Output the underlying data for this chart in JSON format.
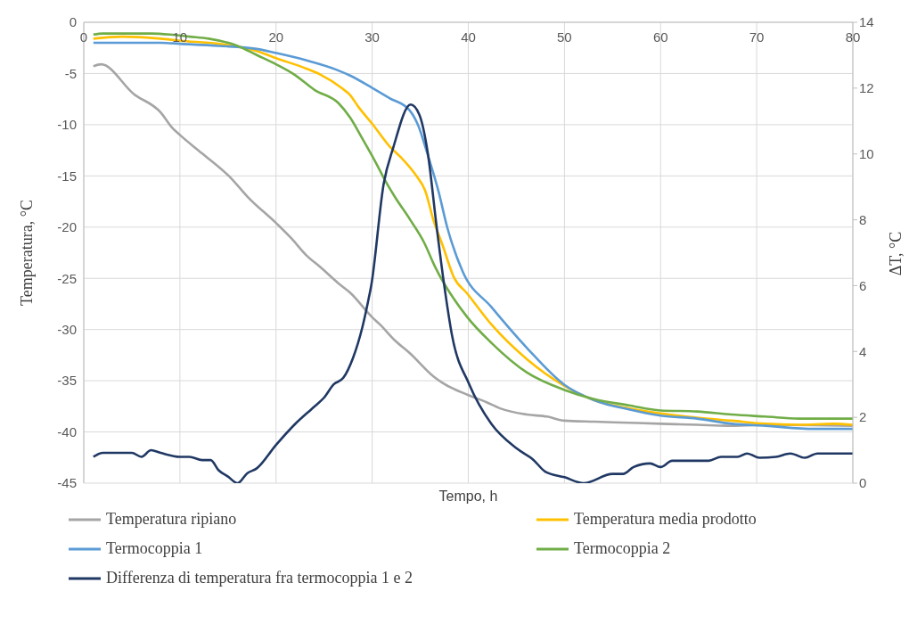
{
  "chart_data": {
    "type": "line",
    "xlabel": "Tempo, h",
    "ylabel": "Temperatura, °C",
    "y2label": "ΔT, °C",
    "xlim": [
      0,
      80
    ],
    "xticks": [
      0,
      10,
      20,
      30,
      40,
      50,
      60,
      70,
      80
    ],
    "ylim": [
      -45,
      0
    ],
    "yticks": [
      -45,
      -40,
      -35,
      -30,
      -25,
      -20,
      -15,
      -10,
      -5,
      0
    ],
    "y2lim": [
      0,
      14
    ],
    "y2ticks": [
      0,
      2,
      4,
      6,
      8,
      10,
      12,
      14
    ],
    "grid": true,
    "legend": "bottom",
    "marker": "none",
    "series": [
      {
        "name": "Temperatura ripiano",
        "color": "#a5a5a5",
        "x": [
          1,
          1.8,
          5.2,
          8,
          9.2,
          10,
          12.3,
          15.4,
          17,
          20,
          21.6,
          23.1,
          24.6,
          26.5,
          27.7,
          30,
          30.8,
          32.4,
          33.9,
          36.4,
          37.3,
          40,
          41.9,
          43.3,
          46.1,
          48.2,
          50,
          53.1,
          56.7,
          60,
          63.8,
          67,
          70.9,
          80
        ],
        "values": [
          -4.3,
          -4.1,
          -7,
          -8.8,
          -10.3,
          -11,
          -12.8,
          -15.3,
          -17,
          -19.6,
          -21.1,
          -22.7,
          -23.9,
          -25.5,
          -26.4,
          -28.8,
          -29.5,
          -31.1,
          -32.3,
          -34.6,
          -35.2,
          -36.4,
          -37.1,
          -37.7,
          -38.3,
          -38.5,
          -38.9,
          -39,
          -39.1,
          -39.2,
          -39.3,
          -39.4,
          -39.3,
          -39.4
        ]
      },
      {
        "name": "Temperatura media prodotto",
        "color": "#ffc000",
        "x": [
          1,
          4,
          8,
          10,
          14,
          18,
          20,
          23.1,
          24.6,
          26.8,
          27.7,
          28.6,
          30,
          31.8,
          33,
          34.6,
          35.5,
          36.4,
          37.3,
          38.5,
          39.9,
          42.4,
          46.1,
          50,
          53.1,
          56.7,
          60,
          63.8,
          67.4,
          70.9,
          74.4,
          78,
          80
        ],
        "values": [
          -1.6,
          -1.4,
          -1.6,
          -1.8,
          -2.1,
          -2.8,
          -3.5,
          -4.5,
          -5.1,
          -6.4,
          -7.1,
          -8.3,
          -9.9,
          -12.1,
          -13.2,
          -15,
          -16.4,
          -19.4,
          -21.7,
          -24.9,
          -26.5,
          -29.5,
          -32.9,
          -35.5,
          -36.9,
          -37.7,
          -38.2,
          -38.6,
          -38.9,
          -39.2,
          -39.3,
          -39.2,
          -39.3
        ]
      },
      {
        "name": "Termocoppia 1",
        "color": "#5b9bd5",
        "x": [
          1,
          8,
          10,
          14,
          18,
          20,
          23.1,
          26.2,
          27.7,
          30,
          31.8,
          33.9,
          34.8,
          35.7,
          36.9,
          37.8,
          39.4,
          42.4,
          46.1,
          50,
          53.1,
          56.7,
          60,
          63.8,
          67.4,
          70.9,
          76,
          80
        ],
        "values": [
          -2,
          -2,
          -2.1,
          -2.3,
          -2.6,
          -3,
          -3.7,
          -4.6,
          -5.2,
          -6.4,
          -7.4,
          -8.6,
          -10.1,
          -12.7,
          -16.5,
          -20,
          -24.3,
          -27.8,
          -31.8,
          -35.4,
          -36.9,
          -37.8,
          -38.4,
          -38.7,
          -39.2,
          -39.4,
          -39.7,
          -39.7
        ]
      },
      {
        "name": "Termocoppia 2",
        "color": "#70ad47",
        "x": [
          1,
          2,
          7,
          9,
          11,
          13,
          16,
          18,
          20,
          21.9,
          24,
          26.5,
          27.7,
          29,
          30.2,
          31.5,
          32.4,
          33.9,
          35.4,
          36.5,
          39.9,
          42.4,
          46.1,
          50,
          53.1,
          56.7,
          60,
          63.8,
          67.4,
          70.9,
          74.4,
          80
        ],
        "values": [
          -1.2,
          -1.1,
          -1.1,
          -1.2,
          -1.4,
          -1.6,
          -2.3,
          -3.2,
          -4.1,
          -5.1,
          -6.6,
          -7.9,
          -9.3,
          -11.4,
          -13.4,
          -15.7,
          -17.1,
          -19.2,
          -21.5,
          -23.8,
          -28.8,
          -31.3,
          -34.2,
          -35.9,
          -36.8,
          -37.4,
          -37.9,
          -38,
          -38.3,
          -38.5,
          -38.7,
          -38.7
        ]
      },
      {
        "name": "Differenza di temperatura fra termocoppia 1 e 2",
        "color": "#203864",
        "axis": "y2",
        "x": [
          1,
          2,
          5,
          6,
          7,
          8,
          10,
          11,
          12.3,
          13.2,
          14,
          15,
          16,
          17,
          18,
          20,
          22,
          24,
          25,
          26,
          27,
          28,
          29,
          29.7,
          29.9,
          31.2,
          32.2,
          34,
          34.9,
          35.8,
          36.7,
          37.5,
          38.3,
          40.1,
          42.4,
          45,
          46.8,
          48,
          50,
          52,
          55,
          56.1,
          57.2,
          58.9,
          60,
          61.2,
          65,
          66.3,
          68,
          69,
          70.3,
          72,
          73.5,
          75,
          76.3,
          80
        ],
        "values": [
          0.8,
          0.92,
          0.92,
          0.8,
          1,
          0.92,
          0.8,
          0.8,
          0.7,
          0.7,
          0.4,
          0.2,
          0,
          0.3,
          0.45,
          1.16,
          1.8,
          2.33,
          2.6,
          3,
          3.2,
          3.8,
          4.76,
          5.7,
          6,
          9.1,
          10.2,
          11.5,
          11.2,
          10,
          7.8,
          6,
          4.5,
          3,
          1.8,
          1.06,
          0.7,
          0.35,
          0.18,
          0,
          0.28,
          0.28,
          0.49,
          0.6,
          0.49,
          0.68,
          0.68,
          0.8,
          0.8,
          0.9,
          0.77,
          0.8,
          0.9,
          0.77,
          0.9,
          0.9
        ]
      }
    ]
  }
}
